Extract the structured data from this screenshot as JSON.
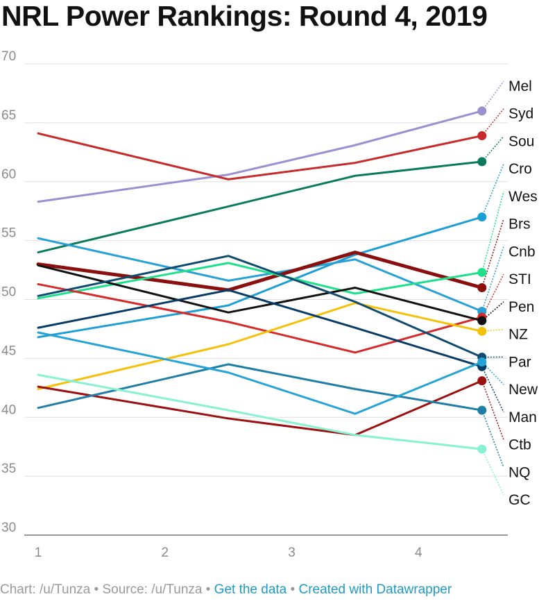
{
  "title": "NRL Power Rankings: Round 4, 2019",
  "footer": {
    "chart_by": "Chart: /u/Tunza",
    "sep": " • ",
    "source": "Source: /u/Tunza",
    "get_data": "Get the data",
    "created": "Created with Datawrapper"
  },
  "chart_data": {
    "type": "line",
    "title": "NRL Power Rankings: Round 4, 2019",
    "x": [
      1,
      2.5,
      3.5,
      4.5
    ],
    "xticks": [
      1,
      2,
      3,
      4
    ],
    "xlim": [
      1,
      4.6
    ],
    "ylim": [
      30,
      70
    ],
    "yticks": [
      30,
      35,
      40,
      45,
      50,
      55,
      60,
      65,
      70
    ],
    "grid": true,
    "series": [
      {
        "name": "Mel",
        "color": "#9b8fd0",
        "values": [
          58.3,
          60.6,
          63.1,
          66.0
        ]
      },
      {
        "name": "Syd",
        "color": "#c62a2a",
        "values": [
          64.1,
          60.2,
          61.6,
          63.9
        ]
      },
      {
        "name": "Sou",
        "color": "#0a7a5c",
        "values": [
          54.0,
          57.9,
          60.5,
          61.7
        ]
      },
      {
        "name": "Cro",
        "color": "#1e9fd4",
        "values": [
          46.8,
          49.5,
          53.8,
          57.0
        ]
      },
      {
        "name": "Cnb",
        "color": "#27a0d6",
        "values": [
          55.2,
          51.6,
          53.4,
          49.0
        ]
      },
      {
        "name": "Brs",
        "color": "#8a0f0f",
        "values": [
          53.0,
          50.8,
          54.0,
          51.0
        ]
      },
      {
        "name": "Wes",
        "color": "#1ee08a",
        "values": [
          50.1,
          53.1,
          50.5,
          52.3
        ]
      },
      {
        "name": "STI",
        "color": "#d62a2a",
        "values": [
          51.3,
          48.1,
          45.5,
          48.5
        ]
      },
      {
        "name": "Pen",
        "color": "#111111",
        "values": [
          52.9,
          48.9,
          51.0,
          48.2
        ]
      },
      {
        "name": "NZ",
        "color": "#f5c108",
        "values": [
          42.4,
          46.2,
          49.7,
          47.3
        ]
      },
      {
        "name": "Par",
        "color": "#0f4b6e",
        "values": [
          50.3,
          53.7,
          49.8,
          45.1
        ]
      },
      {
        "name": "Ctb",
        "color": "#9b1010",
        "values": [
          42.6,
          39.9,
          38.5,
          43.1
        ]
      },
      {
        "name": "NQ",
        "color": "#1f7ea6",
        "values": [
          40.8,
          44.5,
          42.4,
          40.6
        ]
      },
      {
        "name": "Man",
        "color": "#083b66",
        "values": [
          47.6,
          50.8,
          47.6,
          44.3
        ]
      },
      {
        "name": "New",
        "color": "#26a3d6",
        "values": [
          47.2,
          43.8,
          40.3,
          44.7
        ]
      },
      {
        "name": "GC",
        "color": "#86f2d0",
        "values": [
          43.6,
          40.6,
          38.5,
          37.3
        ]
      }
    ]
  }
}
